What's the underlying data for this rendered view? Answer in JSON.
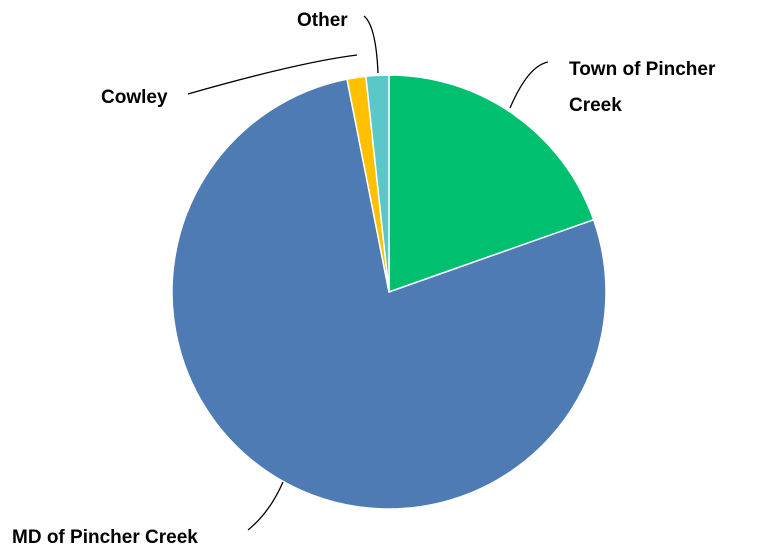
{
  "chart_data": {
    "type": "pie",
    "title": "",
    "start_angle_deg": 0,
    "direction": "clockwise",
    "slices": [
      {
        "label": "Town of Pincher Creek",
        "value": 19.6,
        "color": "#00c06f"
      },
      {
        "label": "MD of Pincher Creek",
        "value": 77.3,
        "color": "#4e7bb4"
      },
      {
        "label": "Cowley",
        "value": 1.4,
        "color": "#ffc000"
      },
      {
        "label": "Other",
        "value": 1.7,
        "color": "#5bc8c8"
      }
    ],
    "legend": "none",
    "data_labels": "category names with leader lines"
  }
}
